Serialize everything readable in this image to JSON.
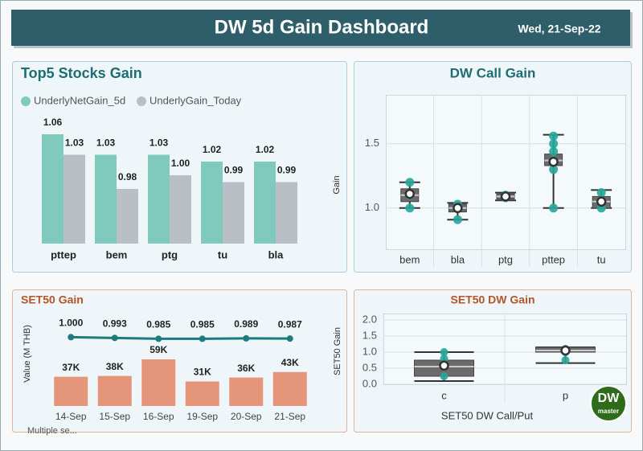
{
  "header": {
    "title": "DW 5d Gain Dashboard",
    "date": "Wed, 21-Sep-22"
  },
  "chart_data": [
    {
      "type": "bar",
      "title": "Top5 Stocks Gain",
      "categories": [
        "pttep",
        "bem",
        "ptg",
        "tu",
        "bla"
      ],
      "series": [
        {
          "name": "UnderlyNetGain_5d",
          "color": "#7fc9bd",
          "values": [
            1.06,
            1.03,
            1.03,
            1.02,
            1.02
          ],
          "value_labels": [
            "1.06",
            "1.03",
            "1.03",
            "1.02",
            "1.02"
          ]
        },
        {
          "name": "UnderlyGain_Today",
          "color": "#b9bfc5",
          "values": [
            1.03,
            0.98,
            1.0,
            0.99,
            0.99
          ],
          "value_labels": [
            "1.03",
            "0.98",
            "1.00",
            "0.99",
            "0.99"
          ]
        }
      ],
      "ylim": [
        0.9,
        1.08
      ]
    },
    {
      "type": "box",
      "title": "DW Call Gain",
      "y_label": "Gain",
      "categories": [
        "bem",
        "bla",
        "ptg",
        "pttep",
        "tu"
      ],
      "boxes": [
        {
          "min": 1.0,
          "q1": 1.05,
          "median": 1.1,
          "q3": 1.15,
          "max": 1.2,
          "mean": 1.11,
          "points": [
            1.0,
            1.1,
            1.2
          ]
        },
        {
          "min": 0.91,
          "q1": 0.97,
          "median": 1.0,
          "q3": 1.03,
          "max": 1.04,
          "mean": 1.0,
          "points": [
            0.91,
            1.0,
            1.03
          ]
        },
        {
          "min": 1.06,
          "q1": 1.07,
          "median": 1.09,
          "q3": 1.11,
          "max": 1.12,
          "mean": 1.09,
          "points": [
            1.08,
            1.1
          ]
        },
        {
          "min": 1.0,
          "q1": 1.33,
          "median": 1.37,
          "q3": 1.42,
          "max": 1.57,
          "mean": 1.36,
          "points": [
            1.0,
            1.3,
            1.37,
            1.44,
            1.5,
            1.56
          ]
        },
        {
          "min": 1.0,
          "q1": 1.0,
          "median": 1.05,
          "q3": 1.09,
          "max": 1.14,
          "mean": 1.05,
          "points": [
            1.0,
            1.05,
            1.12
          ]
        }
      ],
      "point_color": "#26a69a",
      "box_color": "#6b6b6b",
      "ylim": [
        0.68,
        1.88
      ],
      "yticks": [
        {
          "value": 1.0,
          "label": "1.0"
        },
        {
          "value": 1.5,
          "label": "1.5"
        }
      ],
      "grid": true
    },
    {
      "type": "combo",
      "title": "SET50 Gain",
      "y_label": "Value (M THB)",
      "categories": [
        "14-Sep",
        "15-Sep",
        "16-Sep",
        "19-Sep",
        "20-Sep",
        "21-Sep"
      ],
      "series": [
        {
          "type": "bar",
          "color": "#e4957a",
          "values": [
            37000,
            38000,
            59000,
            31000,
            36000,
            43000
          ],
          "value_labels": [
            "37K",
            "38K",
            "59K",
            "31K",
            "36K",
            "43K"
          ]
        },
        {
          "type": "line",
          "axis": "y2",
          "color": "#1e7b7b",
          "values": [
            1.0,
            0.993,
            0.985,
            0.985,
            0.989,
            0.987
          ],
          "value_labels": [
            "1.000",
            "0.993",
            "0.985",
            "0.985",
            "0.989",
            "0.987"
          ]
        }
      ],
      "ylim": [
        0,
        117000
      ],
      "y2lim": [
        0.36,
        1.22
      ]
    },
    {
      "type": "box",
      "title": "SET50 DW Gain",
      "y_label": "SET50 Gain",
      "x_label": "SET50 DW Call/Put",
      "categories": [
        "c",
        "p"
      ],
      "boxes": [
        {
          "min": 0.1,
          "q1": 0.25,
          "median": 0.55,
          "q3": 0.75,
          "max": 1.0,
          "mean": 0.58,
          "points": [
            0.25,
            0.55,
            0.8,
            1.0
          ]
        },
        {
          "min": 0.66,
          "q1": 1.0,
          "median": 1.05,
          "q3": 1.15,
          "max": 1.15,
          "mean": 1.05,
          "points": [
            0.75,
            1.0,
            1.1
          ]
        }
      ],
      "point_color": "#26a69a",
      "box_color": "#6b6b6b",
      "ylim": [
        0,
        2.2
      ],
      "yticks": [
        {
          "value": 0,
          "label": "0.0"
        },
        {
          "value": 0.5,
          "label": "0.5"
        },
        {
          "value": 1,
          "label": "1.0"
        },
        {
          "value": 1.5,
          "label": "1.5"
        },
        {
          "value": 2,
          "label": "2.0"
        }
      ],
      "grid": true
    }
  ],
  "slicer": {
    "label": "Multiple se..."
  },
  "logo": {
    "line1": "DW",
    "line2": "master"
  }
}
